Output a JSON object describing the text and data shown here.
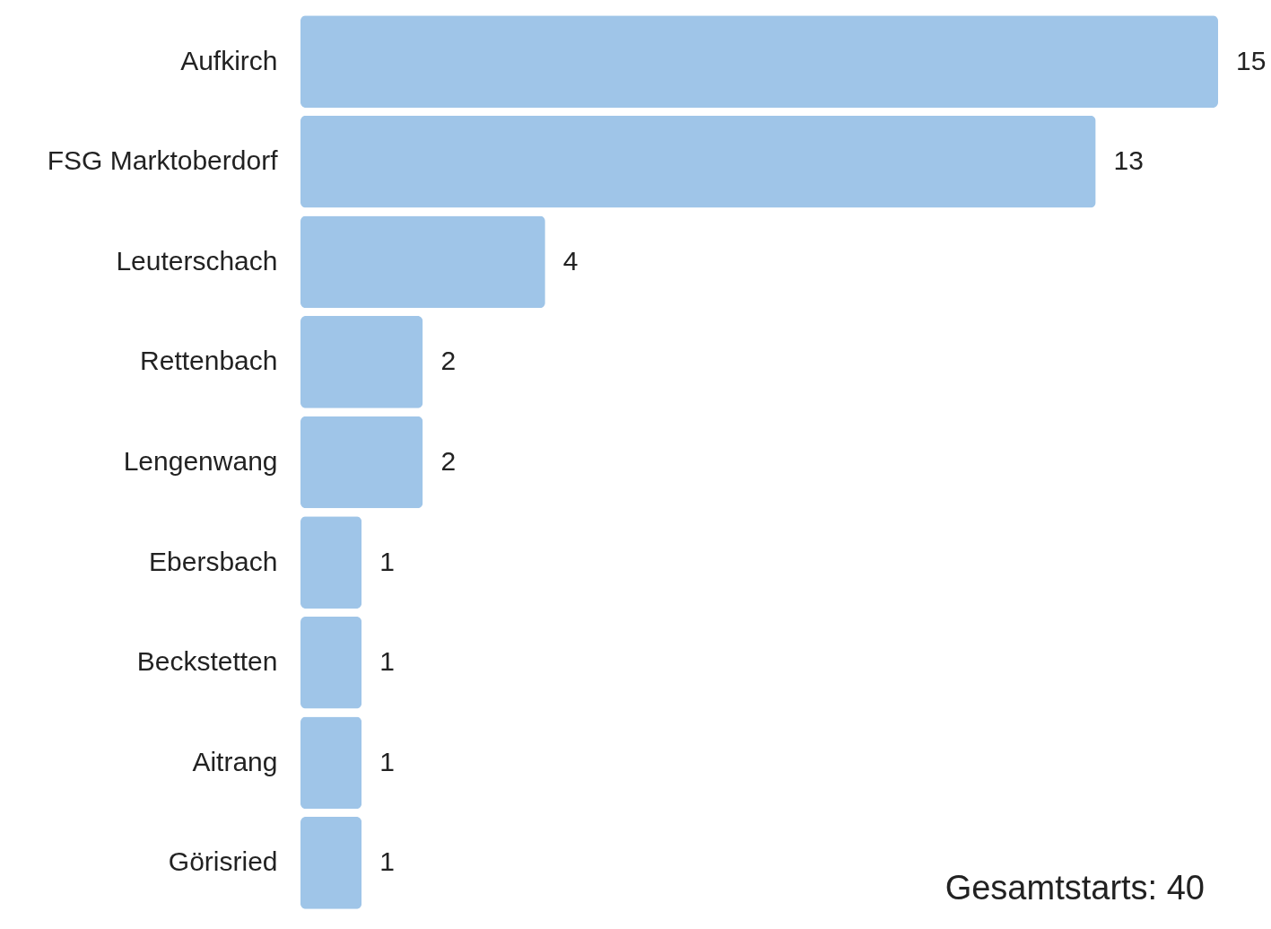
{
  "chart_data": {
    "type": "bar",
    "orientation": "horizontal",
    "categories": [
      "Aufkirch",
      "FSG Marktoberdorf",
      "Leuterschach",
      "Rettenbach",
      "Lengenwang",
      "Ebersbach",
      "Beckstetten",
      "Aitrang",
      "Görisried"
    ],
    "values": [
      15,
      13,
      4,
      2,
      2,
      1,
      1,
      1,
      1
    ],
    "color": "#9fc5e8",
    "data_labels": true,
    "grid": false,
    "annotations": [
      "Gesamtstarts: 40"
    ]
  }
}
